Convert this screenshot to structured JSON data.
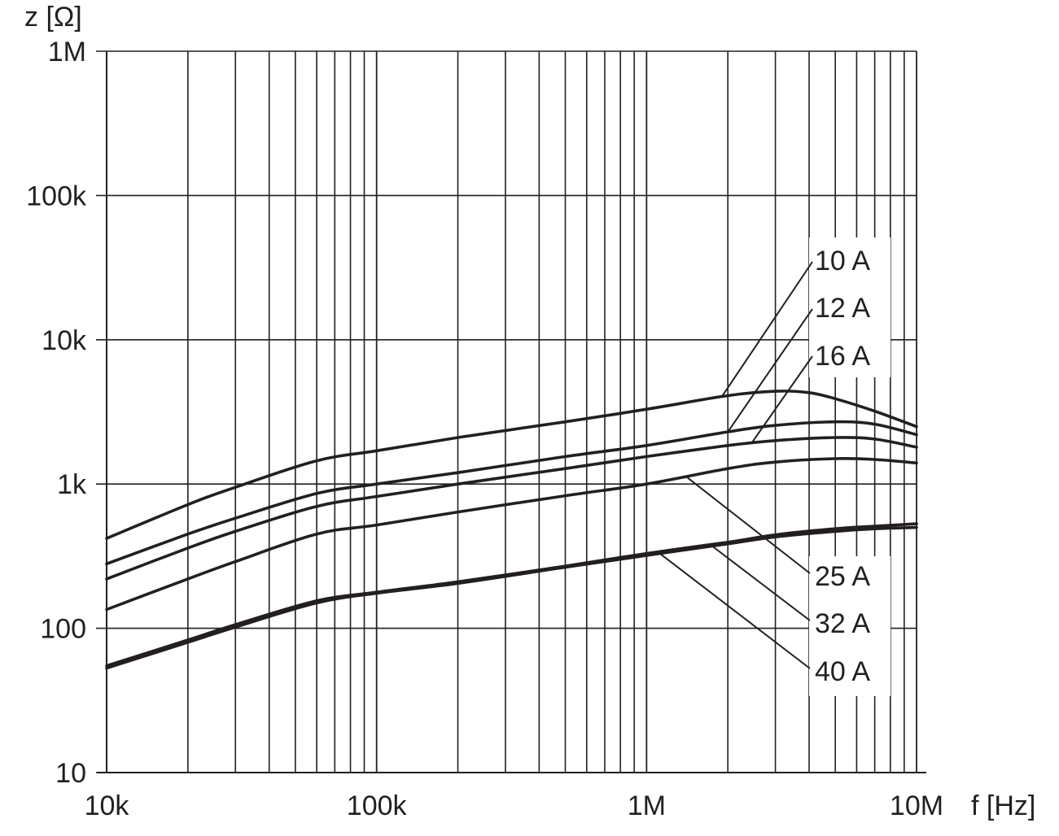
{
  "chart_data": {
    "type": "line",
    "title": "",
    "xlabel": "f [Hz]",
    "ylabel": "z [Ω]",
    "x_scale": "log",
    "y_scale": "log",
    "xlim": [
      10000,
      10000000
    ],
    "ylim": [
      10,
      1000000
    ],
    "x_ticks": [
      {
        "value": 10000,
        "label": "10k"
      },
      {
        "value": 100000,
        "label": "100k"
      },
      {
        "value": 1000000,
        "label": "1M"
      },
      {
        "value": 10000000,
        "label": "10M"
      }
    ],
    "y_ticks": [
      {
        "value": 10,
        "label": "10"
      },
      {
        "value": 100,
        "label": "100"
      },
      {
        "value": 1000,
        "label": "1k"
      },
      {
        "value": 10000,
        "label": "10k"
      },
      {
        "value": 100000,
        "label": "100k"
      },
      {
        "value": 1000000,
        "label": "1M"
      }
    ],
    "grid": true,
    "line_color": "#231f20",
    "series": [
      {
        "name": "10 A",
        "x": [
          10000,
          20000,
          30000,
          60000,
          100000,
          200000,
          500000,
          1000000,
          2000000,
          3000000,
          4000000,
          5000000,
          7000000,
          10000000
        ],
        "y": [
          420,
          720,
          950,
          1450,
          1700,
          2100,
          2700,
          3300,
          4100,
          4400,
          4300,
          3900,
          3200,
          2500
        ]
      },
      {
        "name": "12 A",
        "x": [
          10000,
          20000,
          30000,
          60000,
          100000,
          200000,
          500000,
          1000000,
          2000000,
          3000000,
          5000000,
          7000000,
          10000000
        ],
        "y": [
          280,
          450,
          580,
          860,
          1000,
          1200,
          1550,
          1850,
          2300,
          2550,
          2700,
          2600,
          2200
        ]
      },
      {
        "name": "16 A",
        "x": [
          10000,
          20000,
          30000,
          60000,
          100000,
          200000,
          500000,
          1000000,
          2000000,
          3000000,
          5000000,
          7000000,
          10000000
        ],
        "y": [
          220,
          360,
          470,
          700,
          820,
          1000,
          1280,
          1550,
          1850,
          2000,
          2100,
          2050,
          1800
        ]
      },
      {
        "name": "25 A",
        "x": [
          10000,
          20000,
          30000,
          60000,
          100000,
          200000,
          500000,
          1000000,
          2000000,
          3000000,
          5000000,
          7000000,
          10000000
        ],
        "y": [
          135,
          220,
          290,
          450,
          520,
          640,
          830,
          1000,
          1280,
          1420,
          1500,
          1480,
          1400
        ]
      },
      {
        "name": "32 A",
        "x": [
          10000,
          20000,
          30000,
          60000,
          100000,
          200000,
          500000,
          1000000,
          2000000,
          3000000,
          5000000,
          7000000,
          10000000
        ],
        "y": [
          53,
          80,
          102,
          150,
          175,
          205,
          265,
          320,
          385,
          430,
          470,
          490,
          500
        ]
      },
      {
        "name": "40 A",
        "x": [
          10000,
          20000,
          30000,
          60000,
          100000,
          200000,
          500000,
          1000000,
          2000000,
          3000000,
          5000000,
          7000000,
          10000000
        ],
        "y": [
          55,
          83,
          106,
          155,
          178,
          210,
          270,
          330,
          395,
          445,
          490,
          510,
          530
        ]
      }
    ]
  }
}
